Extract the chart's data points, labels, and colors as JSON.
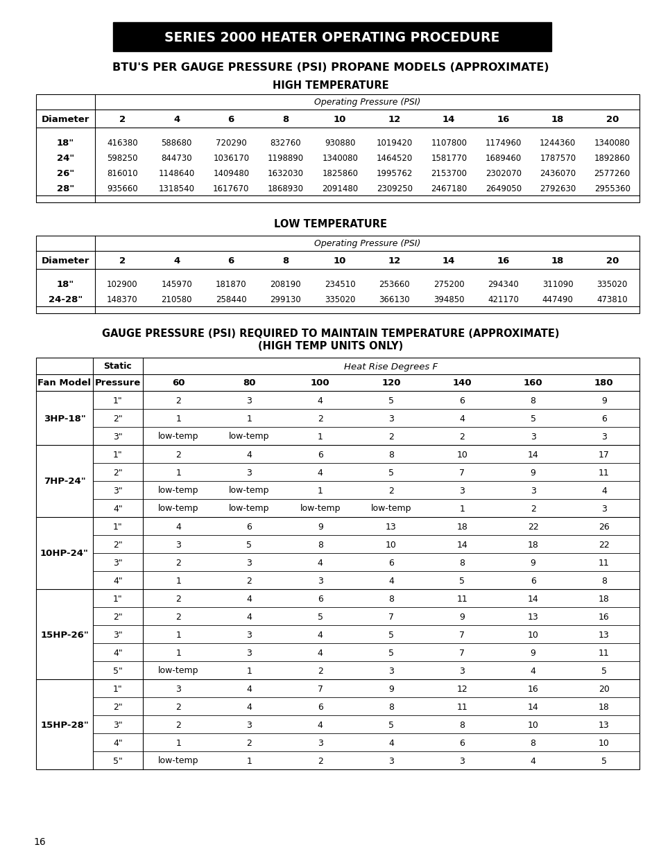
{
  "title": "SERIES 2000 HEATER OPERATING PROCEDURE",
  "section1_title": "BTU'S PER GAUGE PRESSURE (PSI) PROPANE MODELS (APPROXIMATE)",
  "high_temp_title": "HIGH TEMPERATURE",
  "low_temp_title": "LOW TEMPERATURE",
  "section3_title_line1": "GAUGE PRESSURE (PSI) REQUIRED TO MAINTAIN TEMPERATURE (APPROXIMATE)",
  "section3_title_line2": "(HIGH TEMP UNITS ONLY)",
  "op_pressure_label": "Operating Pressure (PSI)",
  "heat_rise_label": "Heat Rise Degrees F",
  "psi_cols": [
    "2",
    "4",
    "6",
    "8",
    "10",
    "12",
    "14",
    "16",
    "18",
    "20"
  ],
  "high_temp_diameters": [
    "18\"",
    "24\"",
    "26\"",
    "28\""
  ],
  "high_temp_data": [
    [
      416380,
      588680,
      720290,
      832760,
      930880,
      1019420,
      1107800,
      1174960,
      1244360,
      1340080
    ],
    [
      598250,
      844730,
      1036170,
      1198890,
      1340080,
      1464520,
      1581770,
      1689460,
      1787570,
      1892860
    ],
    [
      816010,
      1148640,
      1409480,
      1632030,
      1825860,
      1995762,
      2153700,
      2302070,
      2436070,
      2577260
    ],
    [
      935660,
      1318540,
      1617670,
      1868930,
      2091480,
      2309250,
      2467180,
      2649050,
      2792630,
      2955360
    ]
  ],
  "low_temp_diameters": [
    "18\"",
    "24-28\""
  ],
  "low_temp_data": [
    [
      102900,
      145970,
      181870,
      208190,
      234510,
      253660,
      275200,
      294340,
      311090,
      335020
    ],
    [
      148370,
      210580,
      258440,
      299130,
      335020,
      366130,
      394850,
      421170,
      447490,
      473810
    ]
  ],
  "fan_models": [
    "3HP-18\"",
    "7HP-24\"",
    "10HP-24\"",
    "15HP-26\"",
    "15HP-28\""
  ],
  "static_pressures": {
    "3HP-18\"": [
      "1\"",
      "2\"",
      "3\""
    ],
    "7HP-24\"": [
      "1\"",
      "2\"",
      "3\"",
      "4\""
    ],
    "10HP-24\"": [
      "1\"",
      "2\"",
      "3\"",
      "4\""
    ],
    "15HP-26\"": [
      "1\"",
      "2\"",
      "3\"",
      "4\"",
      "5\""
    ],
    "15HP-28\"": [
      "1\"",
      "2\"",
      "3\"",
      "4\"",
      "5\""
    ]
  },
  "heat_rise_cols": [
    "60",
    "80",
    "100",
    "120",
    "140",
    "160",
    "180"
  ],
  "gauge_pressure_data": {
    "3HP-18\"": [
      [
        2,
        3,
        4,
        5,
        6,
        8,
        9
      ],
      [
        1,
        1,
        2,
        3,
        4,
        5,
        6
      ],
      [
        "low-temp",
        "low-temp",
        1,
        2,
        2,
        3,
        3
      ]
    ],
    "7HP-24\"": [
      [
        2,
        4,
        6,
        8,
        10,
        14,
        17
      ],
      [
        1,
        3,
        4,
        5,
        7,
        9,
        11
      ],
      [
        "low-temp",
        "low-temp",
        1,
        2,
        3,
        3,
        4
      ],
      [
        "low-temp",
        "low-temp",
        "low-temp",
        "low-temp",
        1,
        2,
        3
      ]
    ],
    "10HP-24\"": [
      [
        4,
        6,
        9,
        13,
        18,
        22,
        26
      ],
      [
        3,
        5,
        8,
        10,
        14,
        18,
        22
      ],
      [
        2,
        3,
        4,
        6,
        8,
        9,
        11
      ],
      [
        1,
        2,
        3,
        4,
        5,
        6,
        8
      ]
    ],
    "15HP-26\"": [
      [
        2,
        4,
        6,
        8,
        11,
        14,
        18
      ],
      [
        2,
        4,
        5,
        7,
        9,
        13,
        16
      ],
      [
        1,
        3,
        4,
        5,
        7,
        10,
        13
      ],
      [
        1,
        3,
        4,
        5,
        7,
        9,
        11
      ],
      [
        "low-temp",
        1,
        2,
        3,
        3,
        4,
        5
      ]
    ],
    "15HP-28\"": [
      [
        3,
        4,
        7,
        9,
        12,
        16,
        20
      ],
      [
        2,
        4,
        6,
        8,
        11,
        14,
        18
      ],
      [
        2,
        3,
        4,
        5,
        8,
        10,
        13
      ],
      [
        1,
        2,
        3,
        4,
        6,
        8,
        10
      ],
      [
        "low-temp",
        1,
        2,
        3,
        3,
        4,
        5
      ]
    ]
  },
  "page_number": "16",
  "bg_color": "#ffffff",
  "title_bg": "#000000",
  "title_color": "#ffffff"
}
